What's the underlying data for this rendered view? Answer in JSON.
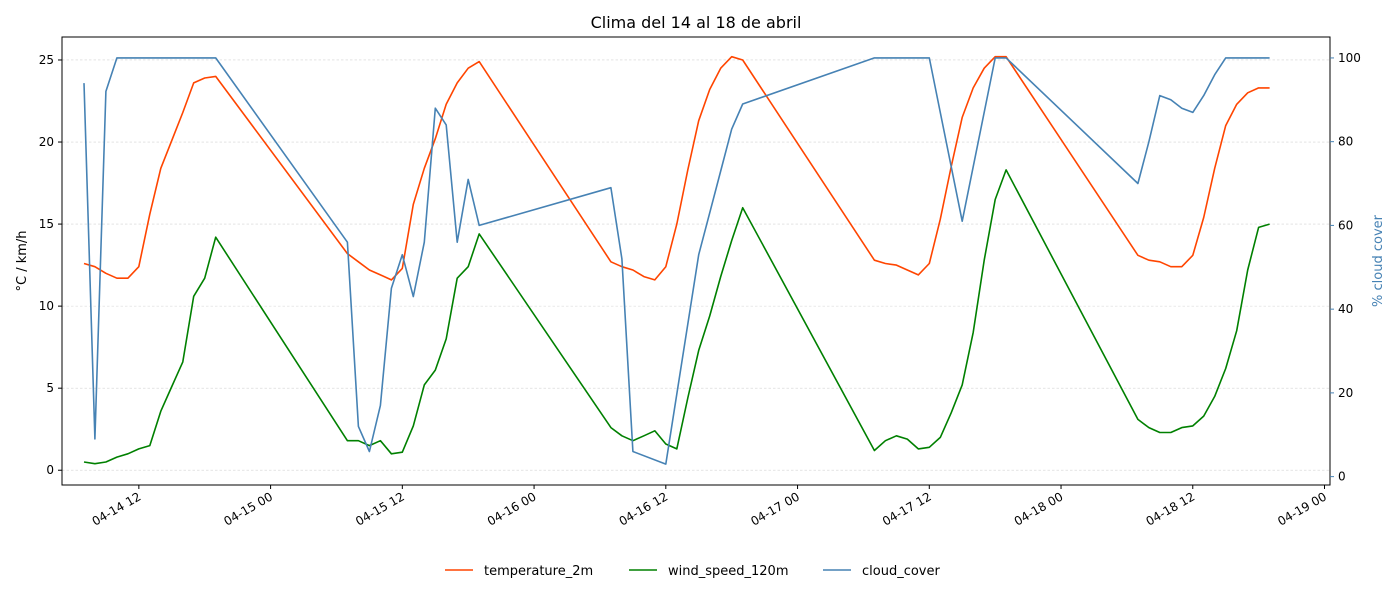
{
  "chart_data": {
    "type": "line",
    "title": "Clima del 14 al 18 de abril",
    "xlabel": "",
    "ylabel_left": "°C / km/h",
    "ylabel_right": "% cloud cover",
    "xlim": [
      "2025-04-14 05:00",
      "2025-04-19 00:30"
    ],
    "ylim_left": [
      -0.9,
      26.4
    ],
    "ylim_right": [
      -2,
      105
    ],
    "x_ticks": [
      {
        "t": "2025-04-14 12:00",
        "label": "04-14 12"
      },
      {
        "t": "2025-04-15 00:00",
        "label": "04-15 00"
      },
      {
        "t": "2025-04-15 12:00",
        "label": "04-15 12"
      },
      {
        "t": "2025-04-16 00:00",
        "label": "04-16 00"
      },
      {
        "t": "2025-04-16 12:00",
        "label": "04-16 12"
      },
      {
        "t": "2025-04-17 00:00",
        "label": "04-17 00"
      },
      {
        "t": "2025-04-17 12:00",
        "label": "04-17 12"
      },
      {
        "t": "2025-04-18 00:00",
        "label": "04-18 00"
      },
      {
        "t": "2025-04-18 12:00",
        "label": "04-18 12"
      },
      {
        "t": "2025-04-19 00:00",
        "label": "04-19 00"
      }
    ],
    "y_ticks_left": [
      0,
      5,
      10,
      15,
      20,
      25
    ],
    "y_ticks_right": [
      0,
      20,
      40,
      60,
      80,
      100
    ],
    "grid": true,
    "legend_position": "bottom-center",
    "series": [
      {
        "name": "temperature_2m",
        "axis": "left",
        "color": "#ff4500",
        "points": [
          [
            "2025-04-14 07:00",
            12.6
          ],
          [
            "2025-04-14 08:00",
            12.4
          ],
          [
            "2025-04-14 09:00",
            12.0
          ],
          [
            "2025-04-14 10:00",
            11.7
          ],
          [
            "2025-04-14 11:00",
            11.7
          ],
          [
            "2025-04-14 12:00",
            12.4
          ],
          [
            "2025-04-14 13:00",
            15.6
          ],
          [
            "2025-04-14 14:00",
            18.4
          ],
          [
            "2025-04-14 15:00",
            20.1
          ],
          [
            "2025-04-14 16:00",
            21.8
          ],
          [
            "2025-04-14 17:00",
            23.6
          ],
          [
            "2025-04-14 18:00",
            23.9
          ],
          [
            "2025-04-14 19:00",
            24.0
          ],
          [
            "2025-04-15 07:00",
            13.2
          ],
          [
            "2025-04-15 08:00",
            12.7
          ],
          [
            "2025-04-15 09:00",
            12.2
          ],
          [
            "2025-04-15 10:00",
            11.9
          ],
          [
            "2025-04-15 11:00",
            11.6
          ],
          [
            "2025-04-15 12:00",
            12.3
          ],
          [
            "2025-04-15 13:00",
            16.2
          ],
          [
            "2025-04-15 14:00",
            18.4
          ],
          [
            "2025-04-15 15:00",
            20.2
          ],
          [
            "2025-04-15 16:00",
            22.3
          ],
          [
            "2025-04-15 17:00",
            23.6
          ],
          [
            "2025-04-15 18:00",
            24.5
          ],
          [
            "2025-04-15 19:00",
            24.9
          ],
          [
            "2025-04-16 07:00",
            12.7
          ],
          [
            "2025-04-16 08:00",
            12.4
          ],
          [
            "2025-04-16 09:00",
            12.2
          ],
          [
            "2025-04-16 10:00",
            11.8
          ],
          [
            "2025-04-16 11:00",
            11.6
          ],
          [
            "2025-04-16 12:00",
            12.4
          ],
          [
            "2025-04-16 13:00",
            15.0
          ],
          [
            "2025-04-16 14:00",
            18.3
          ],
          [
            "2025-04-16 15:00",
            21.3
          ],
          [
            "2025-04-16 16:00",
            23.2
          ],
          [
            "2025-04-16 17:00",
            24.5
          ],
          [
            "2025-04-16 18:00",
            25.2
          ],
          [
            "2025-04-16 19:00",
            25.0
          ],
          [
            "2025-04-17 07:00",
            12.8
          ],
          [
            "2025-04-17 08:00",
            12.6
          ],
          [
            "2025-04-17 09:00",
            12.5
          ],
          [
            "2025-04-17 10:00",
            12.2
          ],
          [
            "2025-04-17 11:00",
            11.9
          ],
          [
            "2025-04-17 12:00",
            12.6
          ],
          [
            "2025-04-17 13:00",
            15.3
          ],
          [
            "2025-04-17 14:00",
            18.5
          ],
          [
            "2025-04-17 15:00",
            21.5
          ],
          [
            "2025-04-17 16:00",
            23.3
          ],
          [
            "2025-04-17 17:00",
            24.5
          ],
          [
            "2025-04-17 18:00",
            25.2
          ],
          [
            "2025-04-17 19:00",
            25.2
          ],
          [
            "2025-04-18 07:00",
            13.1
          ],
          [
            "2025-04-18 08:00",
            12.8
          ],
          [
            "2025-04-18 09:00",
            12.7
          ],
          [
            "2025-04-18 10:00",
            12.4
          ],
          [
            "2025-04-18 11:00",
            12.4
          ],
          [
            "2025-04-18 12:00",
            13.1
          ],
          [
            "2025-04-18 13:00",
            15.4
          ],
          [
            "2025-04-18 14:00",
            18.4
          ],
          [
            "2025-04-18 15:00",
            21.0
          ],
          [
            "2025-04-18 16:00",
            22.3
          ],
          [
            "2025-04-18 17:00",
            23.0
          ],
          [
            "2025-04-18 18:00",
            23.3
          ],
          [
            "2025-04-18 19:00",
            23.3
          ]
        ]
      },
      {
        "name": "wind_speed_120m",
        "axis": "left",
        "color": "#008000",
        "points": [
          [
            "2025-04-14 07:00",
            0.5
          ],
          [
            "2025-04-14 08:00",
            0.4
          ],
          [
            "2025-04-14 09:00",
            0.5
          ],
          [
            "2025-04-14 10:00",
            0.8
          ],
          [
            "2025-04-14 11:00",
            1.0
          ],
          [
            "2025-04-14 12:00",
            1.3
          ],
          [
            "2025-04-14 13:00",
            1.5
          ],
          [
            "2025-04-14 14:00",
            3.6
          ],
          [
            "2025-04-14 15:00",
            5.1
          ],
          [
            "2025-04-14 16:00",
            6.6
          ],
          [
            "2025-04-14 17:00",
            10.6
          ],
          [
            "2025-04-14 18:00",
            11.7
          ],
          [
            "2025-04-14 19:00",
            14.2
          ],
          [
            "2025-04-15 07:00",
            1.8
          ],
          [
            "2025-04-15 08:00",
            1.8
          ],
          [
            "2025-04-15 09:00",
            1.5
          ],
          [
            "2025-04-15 10:00",
            1.8
          ],
          [
            "2025-04-15 11:00",
            1.0
          ],
          [
            "2025-04-15 12:00",
            1.1
          ],
          [
            "2025-04-15 13:00",
            2.7
          ],
          [
            "2025-04-15 14:00",
            5.2
          ],
          [
            "2025-04-15 15:00",
            6.1
          ],
          [
            "2025-04-15 16:00",
            8.0
          ],
          [
            "2025-04-15 17:00",
            11.7
          ],
          [
            "2025-04-15 18:00",
            12.4
          ],
          [
            "2025-04-15 19:00",
            14.4
          ],
          [
            "2025-04-16 07:00",
            2.6
          ],
          [
            "2025-04-16 08:00",
            2.1
          ],
          [
            "2025-04-16 09:00",
            1.8
          ],
          [
            "2025-04-16 10:00",
            2.1
          ],
          [
            "2025-04-16 11:00",
            2.4
          ],
          [
            "2025-04-16 12:00",
            1.6
          ],
          [
            "2025-04-16 13:00",
            1.3
          ],
          [
            "2025-04-16 14:00",
            4.4
          ],
          [
            "2025-04-16 15:00",
            7.3
          ],
          [
            "2025-04-16 16:00",
            9.4
          ],
          [
            "2025-04-16 17:00",
            11.8
          ],
          [
            "2025-04-16 18:00",
            14.0
          ],
          [
            "2025-04-16 19:00",
            16.0
          ],
          [
            "2025-04-17 07:00",
            1.2
          ],
          [
            "2025-04-17 08:00",
            1.8
          ],
          [
            "2025-04-17 09:00",
            2.1
          ],
          [
            "2025-04-17 10:00",
            1.9
          ],
          [
            "2025-04-17 11:00",
            1.3
          ],
          [
            "2025-04-17 12:00",
            1.4
          ],
          [
            "2025-04-17 13:00",
            2.0
          ],
          [
            "2025-04-17 14:00",
            3.5
          ],
          [
            "2025-04-17 15:00",
            5.2
          ],
          [
            "2025-04-17 16:00",
            8.4
          ],
          [
            "2025-04-17 17:00",
            12.8
          ],
          [
            "2025-04-17 18:00",
            16.5
          ],
          [
            "2025-04-17 19:00",
            18.3
          ],
          [
            "2025-04-18 07:00",
            3.1
          ],
          [
            "2025-04-18 08:00",
            2.6
          ],
          [
            "2025-04-18 09:00",
            2.3
          ],
          [
            "2025-04-18 10:00",
            2.3
          ],
          [
            "2025-04-18 11:00",
            2.6
          ],
          [
            "2025-04-18 12:00",
            2.7
          ],
          [
            "2025-04-18 13:00",
            3.3
          ],
          [
            "2025-04-18 14:00",
            4.5
          ],
          [
            "2025-04-18 15:00",
            6.2
          ],
          [
            "2025-04-18 16:00",
            8.5
          ],
          [
            "2025-04-18 17:00",
            12.2
          ],
          [
            "2025-04-18 18:00",
            14.8
          ],
          [
            "2025-04-18 19:00",
            15.0
          ]
        ]
      },
      {
        "name": "cloud_cover",
        "axis": "right",
        "color": "#4682b4",
        "points": [
          [
            "2025-04-14 07:00",
            94
          ],
          [
            "2025-04-14 08:00",
            9
          ],
          [
            "2025-04-14 09:00",
            92
          ],
          [
            "2025-04-14 10:00",
            100
          ],
          [
            "2025-04-14 11:00",
            100
          ],
          [
            "2025-04-14 12:00",
            100
          ],
          [
            "2025-04-14 13:00",
            100
          ],
          [
            "2025-04-14 14:00",
            100
          ],
          [
            "2025-04-14 15:00",
            100
          ],
          [
            "2025-04-14 16:00",
            100
          ],
          [
            "2025-04-14 17:00",
            100
          ],
          [
            "2025-04-14 18:00",
            100
          ],
          [
            "2025-04-14 19:00",
            100
          ],
          [
            "2025-04-15 07:00",
            56
          ],
          [
            "2025-04-15 08:00",
            12
          ],
          [
            "2025-04-15 09:00",
            6
          ],
          [
            "2025-04-15 10:00",
            17
          ],
          [
            "2025-04-15 11:00",
            45
          ],
          [
            "2025-04-15 12:00",
            53
          ],
          [
            "2025-04-15 13:00",
            43
          ],
          [
            "2025-04-15 14:00",
            56
          ],
          [
            "2025-04-15 15:00",
            88
          ],
          [
            "2025-04-15 16:00",
            84
          ],
          [
            "2025-04-15 17:00",
            56
          ],
          [
            "2025-04-15 18:00",
            71
          ],
          [
            "2025-04-15 19:00",
            60
          ],
          [
            "2025-04-16 07:00",
            69
          ],
          [
            "2025-04-16 08:00",
            52
          ],
          [
            "2025-04-16 09:00",
            6
          ],
          [
            "2025-04-16 12:00",
            3
          ],
          [
            "2025-04-16 15:00",
            53
          ],
          [
            "2025-04-16 16:00",
            63
          ],
          [
            "2025-04-16 17:00",
            73
          ],
          [
            "2025-04-16 18:00",
            83
          ],
          [
            "2025-04-16 19:00",
            89
          ],
          [
            "2025-04-17 07:00",
            100
          ],
          [
            "2025-04-17 08:00",
            100
          ],
          [
            "2025-04-17 09:00",
            100
          ],
          [
            "2025-04-17 10:00",
            100
          ],
          [
            "2025-04-17 11:00",
            100
          ],
          [
            "2025-04-17 12:00",
            100
          ],
          [
            "2025-04-17 15:00",
            61
          ],
          [
            "2025-04-17 18:00",
            100
          ],
          [
            "2025-04-17 19:00",
            100
          ],
          [
            "2025-04-18 07:00",
            70
          ],
          [
            "2025-04-18 08:00",
            80
          ],
          [
            "2025-04-18 09:00",
            91
          ],
          [
            "2025-04-18 10:00",
            90
          ],
          [
            "2025-04-18 11:00",
            88
          ],
          [
            "2025-04-18 12:00",
            87
          ],
          [
            "2025-04-18 13:00",
            91
          ],
          [
            "2025-04-18 14:00",
            96
          ],
          [
            "2025-04-18 15:00",
            100
          ],
          [
            "2025-04-18 16:00",
            100
          ],
          [
            "2025-04-18 17:00",
            100
          ],
          [
            "2025-04-18 18:00",
            100
          ],
          [
            "2025-04-18 19:00",
            100
          ]
        ]
      }
    ]
  }
}
